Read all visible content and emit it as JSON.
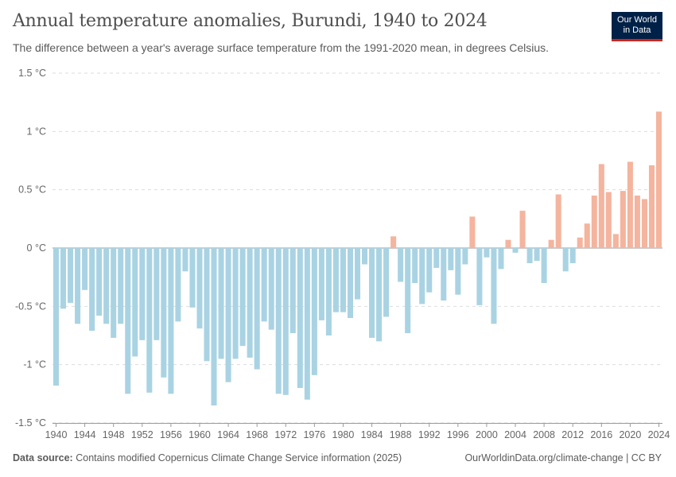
{
  "header": {
    "title": "Annual temperature anomalies, Burundi, 1940 to 2024",
    "subtitle": "The difference between a year's average surface temperature from the 1991-2020 mean, in degrees Celsius."
  },
  "logo": {
    "line1": "Our World",
    "line2": "in Data",
    "bg_color": "#002147",
    "accent_color": "#ce261e"
  },
  "footer": {
    "source_label": "Data source:",
    "source_text": "Contains modified Copernicus Climate Change Service information (2025)",
    "link_text": "OurWorldinData.org/climate-change | CC BY"
  },
  "chart_data": {
    "type": "bar",
    "ylim": [
      -1.5,
      1.5
    ],
    "y_ticks": [
      {
        "value": 1.5,
        "label": "1.5 °C"
      },
      {
        "value": 1,
        "label": "1 °C"
      },
      {
        "value": 0.5,
        "label": "0.5 °C"
      },
      {
        "value": 0,
        "label": "0 °C"
      },
      {
        "value": -0.5,
        "label": "-0.5 °C"
      },
      {
        "value": -1,
        "label": "-1 °C"
      },
      {
        "value": -1.5,
        "label": "-1.5 °C"
      }
    ],
    "x_ticks": [
      "1940",
      "1944",
      "1948",
      "1952",
      "1956",
      "1960",
      "1964",
      "1968",
      "1972",
      "1976",
      "1980",
      "1984",
      "1988",
      "1992",
      "1996",
      "2000",
      "2004",
      "2008",
      "2012",
      "2016",
      "2020",
      "2024"
    ],
    "grid": true,
    "colors": {
      "positive": "#f4b49e",
      "negative": "#a9d3e3"
    },
    "start_year": 1940,
    "values": [
      -1.18,
      -0.52,
      -0.47,
      -0.65,
      -0.36,
      -0.71,
      -0.58,
      -0.65,
      -0.77,
      -0.65,
      -1.25,
      -0.93,
      -0.79,
      -1.24,
      -0.79,
      -1.11,
      -1.25,
      -0.63,
      -0.2,
      -0.51,
      -0.69,
      -0.97,
      -1.35,
      -0.95,
      -1.15,
      -0.95,
      -0.84,
      -0.94,
      -1.04,
      -0.63,
      -0.7,
      -1.25,
      -1.26,
      -0.73,
      -1.2,
      -1.3,
      -1.09,
      -0.62,
      -0.75,
      -0.55,
      -0.55,
      -0.6,
      -0.44,
      -0.14,
      -0.77,
      -0.8,
      -0.59,
      0.1,
      -0.29,
      -0.73,
      -0.3,
      -0.48,
      -0.38,
      -0.17,
      -0.45,
      -0.19,
      -0.4,
      -0.14,
      0.27,
      -0.49,
      -0.08,
      -0.65,
      -0.18,
      0.07,
      -0.04,
      0.32,
      -0.13,
      -0.11,
      -0.3,
      0.07,
      0.46,
      -0.2,
      -0.13,
      0.09,
      0.21,
      0.45,
      0.72,
      0.48,
      0.12,
      0.49,
      0.74,
      0.45,
      0.42,
      0.71,
      1.17
    ]
  }
}
